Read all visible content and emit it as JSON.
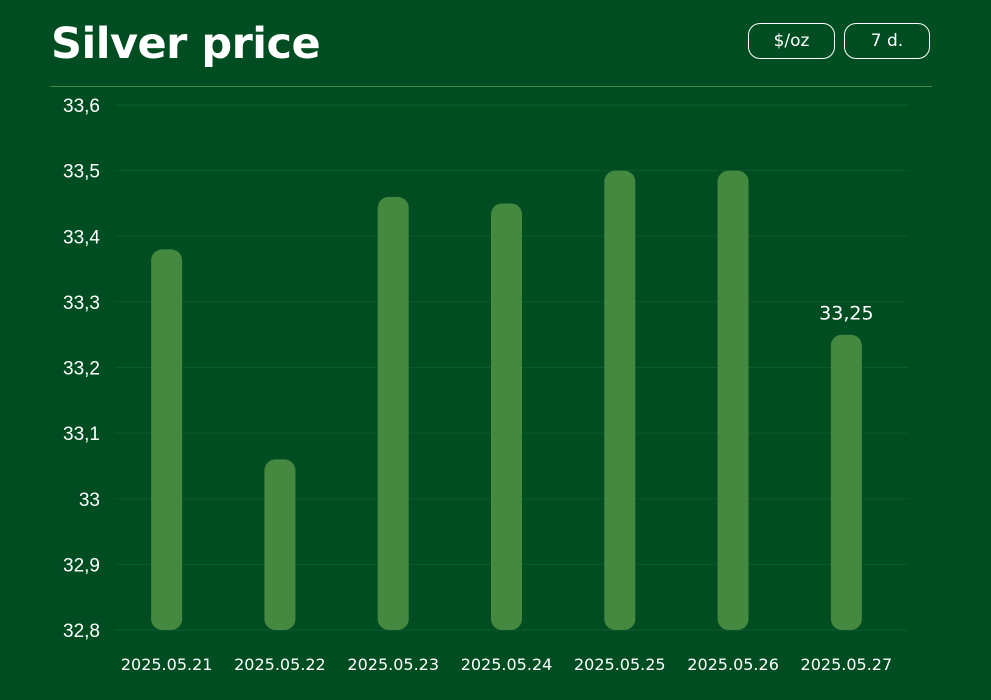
{
  "header": {
    "title": "Silver price",
    "unit_button": "$/oz",
    "range_button": "7 d."
  },
  "colors": {
    "background": "#004d22",
    "bar": "#458840",
    "grid": "#0d5a2c",
    "divider": "#3f8a45"
  },
  "chart_data": {
    "type": "bar",
    "categories": [
      "2025.05.21",
      "2025.05.22",
      "2025.05.23",
      "2025.05.24",
      "2025.05.25",
      "2025.05.26",
      "2025.05.27"
    ],
    "values": [
      33.38,
      33.06,
      33.46,
      33.45,
      33.5,
      33.5,
      33.25
    ],
    "ylim": [
      32.8,
      33.6
    ],
    "yticks": [
      32.8,
      32.9,
      33.0,
      33.1,
      33.2,
      33.3,
      33.4,
      33.5,
      33.6
    ],
    "ytick_labels": [
      "32,8",
      "32,9",
      "33",
      "33,1",
      "33,2",
      "33,3",
      "33,4",
      "33,5",
      "33,6"
    ],
    "data_labels": [
      {
        "index": 6,
        "text": "33,25"
      }
    ],
    "grid": true,
    "legend": "none"
  }
}
